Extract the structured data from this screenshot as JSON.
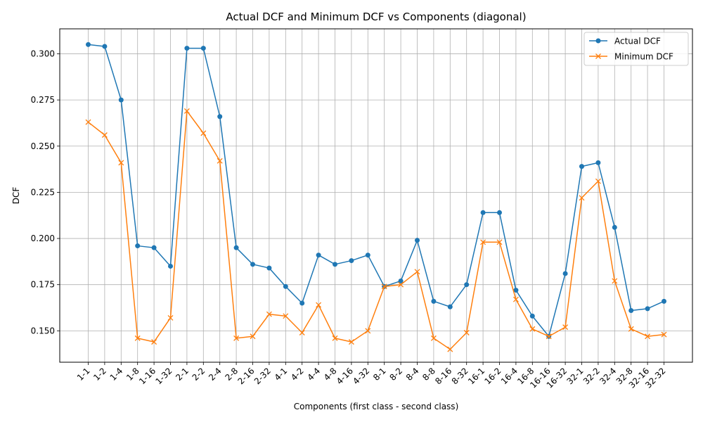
{
  "chart_data": {
    "type": "line",
    "title": "Actual DCF and Minimum DCF vs Components (diagonal)",
    "xlabel": "Components (first class - second class)",
    "ylabel": "DCF",
    "ylim": [
      0.133,
      0.3135
    ],
    "yticks": [
      0.15,
      0.175,
      0.2,
      0.225,
      0.25,
      0.275,
      0.3
    ],
    "ytick_labels": [
      "0.150",
      "0.175",
      "0.200",
      "0.225",
      "0.250",
      "0.275",
      "0.300"
    ],
    "grid": true,
    "legend_position": "top-right",
    "categories": [
      "1-1",
      "1-2",
      "1-4",
      "1-8",
      "1-16",
      "1-32",
      "2-1",
      "2-2",
      "2-4",
      "2-8",
      "2-16",
      "2-32",
      "4-1",
      "4-2",
      "4-4",
      "4-8",
      "4-16",
      "4-32",
      "8-1",
      "8-2",
      "8-4",
      "8-8",
      "8-16",
      "8-32",
      "16-1",
      "16-2",
      "16-4",
      "16-8",
      "16-16",
      "16-32",
      "32-1",
      "32-2",
      "32-4",
      "32-8",
      "32-16",
      "32-32"
    ],
    "series": [
      {
        "name": "Actual DCF",
        "color": "#1f77b4",
        "marker": "circle",
        "values": [
          0.305,
          0.304,
          0.275,
          0.196,
          0.195,
          0.185,
          0.303,
          0.303,
          0.266,
          0.195,
          0.186,
          0.184,
          0.174,
          0.165,
          0.191,
          0.186,
          0.188,
          0.191,
          0.174,
          0.177,
          0.199,
          0.166,
          0.163,
          0.175,
          0.214,
          0.214,
          0.172,
          0.158,
          0.147,
          0.181,
          0.239,
          0.241,
          0.206,
          0.161,
          0.162,
          0.166
        ]
      },
      {
        "name": "Minimum DCF",
        "color": "#ff7f0e",
        "marker": "x",
        "values": [
          0.263,
          0.256,
          0.241,
          0.146,
          0.144,
          0.157,
          0.269,
          0.257,
          0.242,
          0.146,
          0.147,
          0.159,
          0.158,
          0.149,
          0.164,
          0.146,
          0.144,
          0.15,
          0.174,
          0.175,
          0.182,
          0.146,
          0.14,
          0.149,
          0.198,
          0.198,
          0.167,
          0.151,
          0.147,
          0.152,
          0.222,
          0.231,
          0.177,
          0.151,
          0.147,
          0.148
        ]
      }
    ]
  }
}
